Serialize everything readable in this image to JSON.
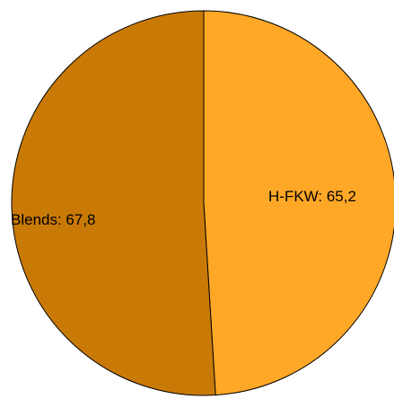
{
  "chart_data": {
    "type": "pie",
    "title": "",
    "slices": [
      {
        "label": "H-FKW",
        "value": 65.2,
        "value_text": "65,2",
        "display_text": "H-FKW:   65,2",
        "color": "#FFA726"
      },
      {
        "label": "Blends",
        "value": 67.8,
        "value_text": "67,8",
        "display_text": "Blends: 67,8",
        "color": "#C97A06"
      }
    ],
    "start_angle_deg": 0,
    "direction": "clockwise",
    "legend": "none",
    "outline_color": "#000000"
  }
}
